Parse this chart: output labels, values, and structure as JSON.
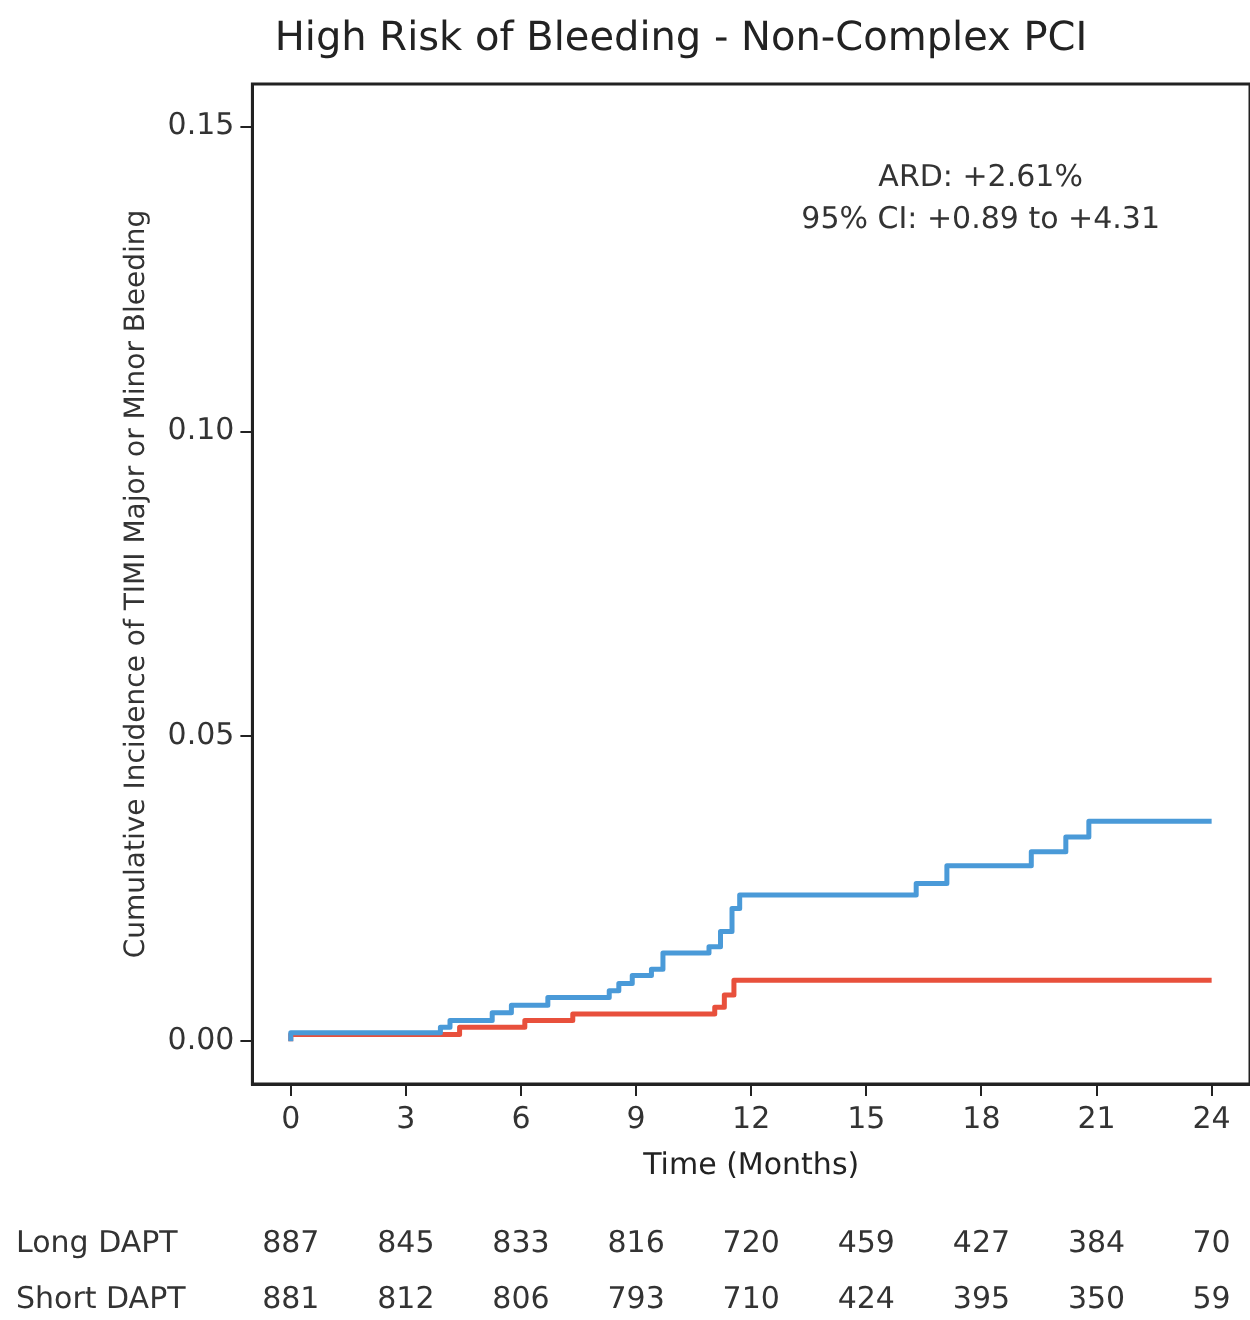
{
  "chart_data": {
    "type": "step",
    "title": "High Risk of Bleeding - Non-Complex PCI",
    "xlabel": "Time (Months)",
    "ylabel": "Cumulative Incidence of TIMI Major or Minor Bleeding",
    "annotations": [
      "ARD: +2.61%",
      "95% CI: +0.89 to +4.31",
      "Long DAPT 887 845 833 816 720 459 427 384 70",
      "Short DAPT 881 812 806 793 710 424 395 350 59"
    ],
    "series": [
      {
        "color": "#4a9ad8",
        "x": [
          0,
          3.9,
          4.15,
          5.25,
          5.75,
          6.7,
          8.3,
          8.55,
          8.9,
          9.4,
          9.7,
          10.9,
          11.2,
          11.5,
          11.7,
          16.3,
          17.1,
          19.3,
          20.2,
          20.8,
          21.55,
          24
        ],
        "values": [
          0,
          0.0014,
          0.0023,
          0.0034,
          0.0047,
          0.0059,
          0.0072,
          0.0083,
          0.0095,
          0.0108,
          0.0118,
          0.0145,
          0.0155,
          0.018,
          0.0218,
          0.024,
          0.0259,
          0.0288,
          0.0311,
          0.0335,
          0.0361,
          0.0361
        ]
      },
      {
        "color": "#e8503c",
        "x": [
          0,
          4.4,
          6.1,
          7.35,
          11.05,
          11.3,
          11.55,
          18.2,
          24
        ],
        "values": [
          0,
          0.0011,
          0.0023,
          0.0034,
          0.0045,
          0.0056,
          0.0076,
          0.01,
          0.01
        ]
      }
    ],
    "xlim": [
      -1,
      25
    ],
    "xticks": [
      0,
      3,
      6,
      9,
      12,
      15,
      18,
      21,
      24
    ],
    "ylim": [
      -0.007,
      0.157
    ],
    "yticks": [
      {
        "value": 0,
        "label": "0.00"
      },
      {
        "value": 0.05,
        "label": "0.05"
      },
      {
        "value": 0.1,
        "label": "0.10"
      },
      {
        "value": 0.15,
        "label": "0.15"
      }
    ],
    "grid": false,
    "legend": false,
    "line_style": "solid",
    "marker": "none"
  }
}
